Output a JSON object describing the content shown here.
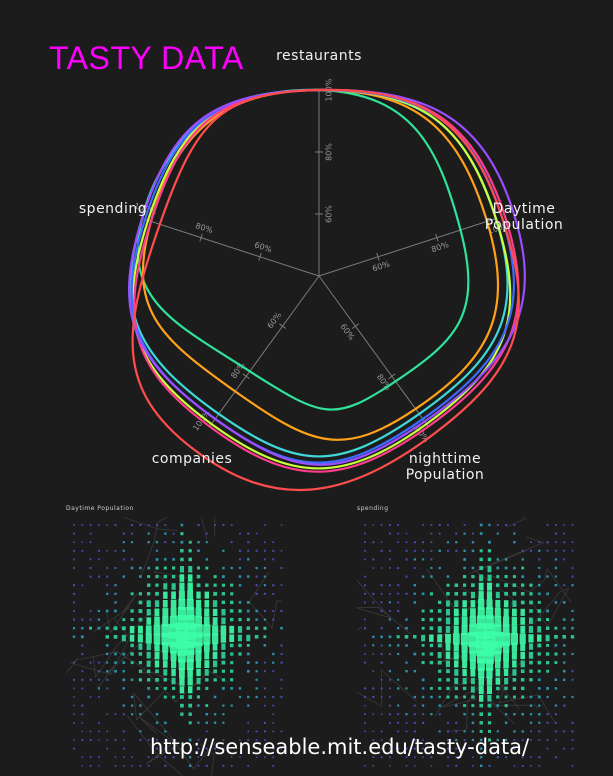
{
  "title": "TASTY DATA",
  "url": "http://senseable.mit.edu/tasty-data/",
  "chart_data": [
    {
      "type": "radar",
      "axes": [
        "restaurants",
        "Daytime Population",
        "nighttime Population",
        "companies",
        "spending"
      ],
      "axis_labels": [
        [
          "restaurants"
        ],
        [
          "Daytime",
          "Population"
        ],
        [
          "nighttime",
          "Population"
        ],
        [
          "companies"
        ],
        [
          "spending"
        ]
      ],
      "tick_labels": [
        "60%",
        "80%",
        "100%"
      ],
      "ticks": [
        0.6,
        0.8,
        1.0
      ],
      "rmin": 0.4,
      "series": [
        {
          "color": "#2fe39a",
          "values": [
            1.0,
            0.88,
            0.82,
            0.78,
            1.0
          ]
        },
        {
          "color": "#3fd7d7",
          "values": [
            1.0,
            1.0,
            0.95,
            0.95,
            1.0
          ]
        },
        {
          "color": "#ffa21a",
          "values": [
            1.0,
            0.97,
            0.93,
            0.86,
            0.97
          ]
        },
        {
          "color": "#c9ff3d",
          "values": [
            1.0,
            1.0,
            0.99,
            0.99,
            0.98
          ]
        },
        {
          "color": "#3d6bff",
          "values": [
            1.0,
            1.02,
            0.97,
            0.97,
            0.99
          ]
        },
        {
          "color": "#ff3d8a",
          "values": [
            1.0,
            1.03,
            1.0,
            1.0,
            0.97
          ]
        },
        {
          "color": "#9b4dff",
          "values": [
            1.0,
            1.06,
            0.98,
            0.97,
            1.0
          ]
        },
        {
          "color": "#ff4d4d",
          "values": [
            1.0,
            1.02,
            1.03,
            1.09,
            0.94
          ]
        }
      ],
      "curve": "smooth-closed",
      "grid": true
    },
    {
      "type": "map",
      "title": "Daytime Population"
    },
    {
      "type": "map",
      "title": "spending"
    }
  ]
}
